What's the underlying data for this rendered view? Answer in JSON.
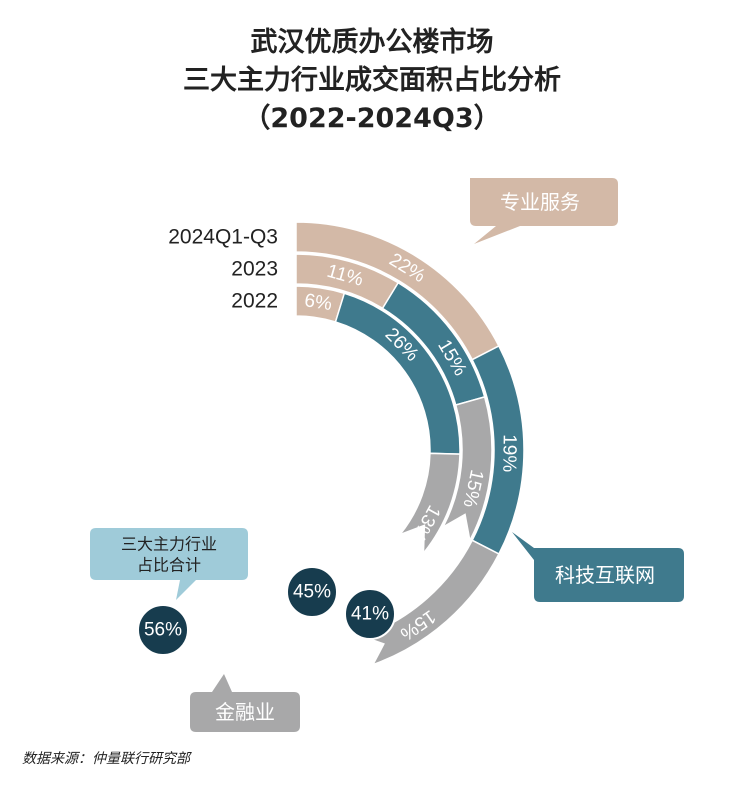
{
  "title_lines": [
    "武汉优质办公楼市场",
    "三大主力行业成交面积占比分析",
    "（2022-2024Q3）"
  ],
  "source": "数据来源：仲量联行研究部",
  "colors": {
    "professional": "#d3b9a7",
    "tech": "#3f7a8d",
    "finance": "#a8a8a9",
    "total_circle": "#173c4e",
    "note_box": "#9fcbd9"
  },
  "chart_data": {
    "type": "radial-bar",
    "title": "武汉优质办公楼市场 三大主力行业成交面积占比分析 （2022-2024Q3）",
    "rings": [
      "2024Q1-Q3",
      "2023",
      "2022"
    ],
    "series": [
      {
        "name": "专业服务",
        "values": [
          22,
          11,
          6
        ]
      },
      {
        "name": "科技互联网",
        "values": [
          19,
          15,
          26
        ]
      },
      {
        "name": "金融业",
        "values": [
          15,
          15,
          13
        ]
      }
    ],
    "totals": {
      "label": "三大主力行业占比合计",
      "values": [
        "56%",
        "41%",
        "45%"
      ]
    }
  }
}
